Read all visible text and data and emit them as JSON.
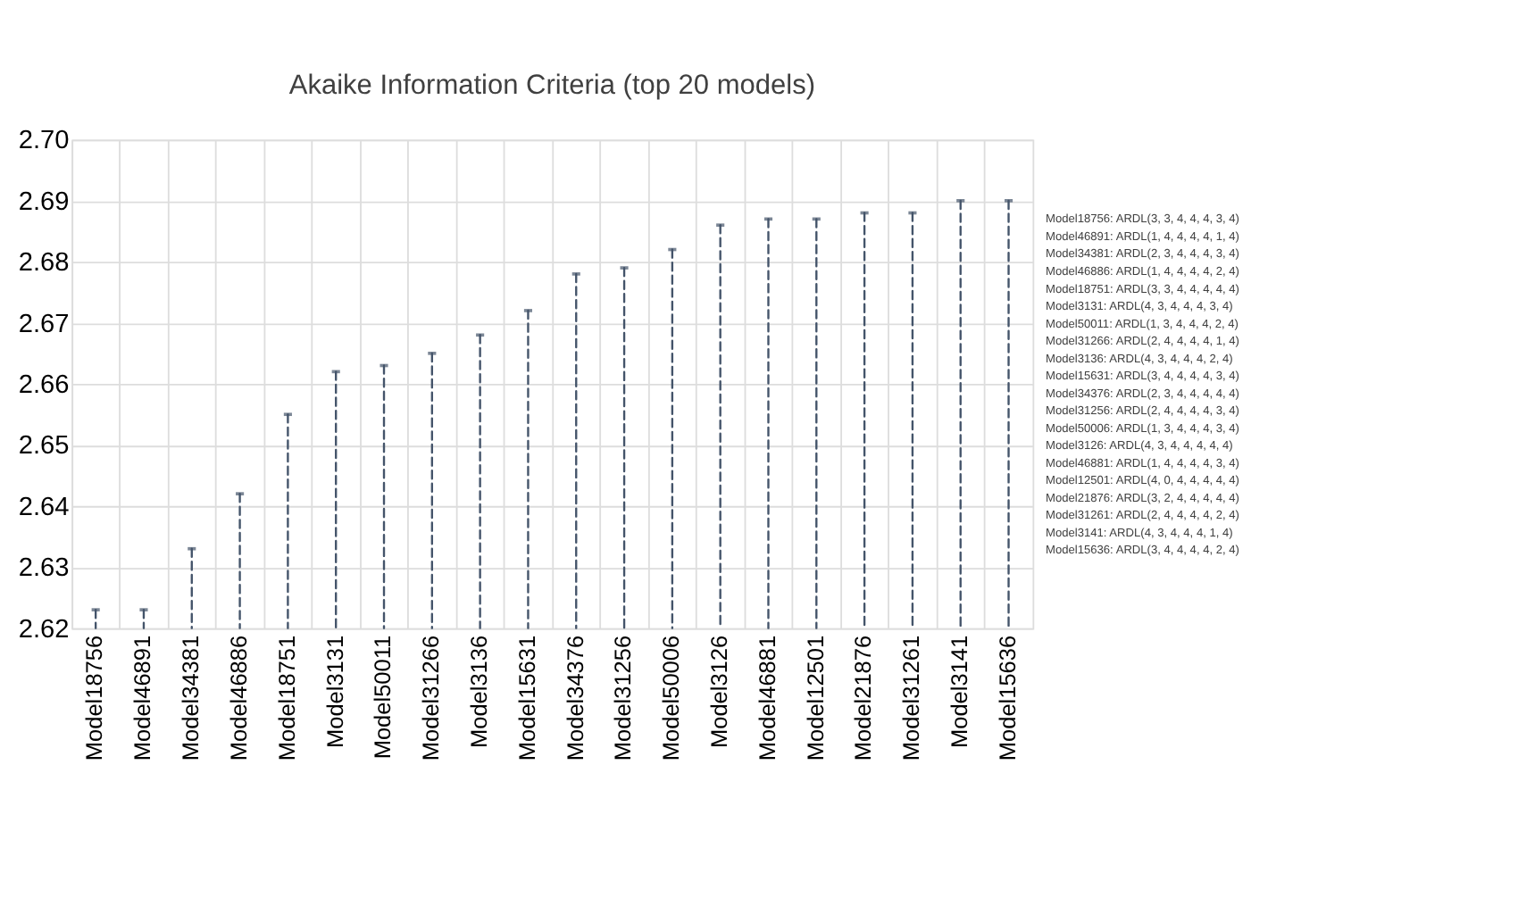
{
  "chart_data": {
    "type": "lollipop",
    "title": "Akaike Information Criteria (top 20 models)",
    "categories": [
      "Model18756",
      "Model46891",
      "Model34381",
      "Model46886",
      "Model18751",
      "Model3131",
      "Model50011",
      "Model31266",
      "Model3136",
      "Model15631",
      "Model34376",
      "Model31256",
      "Model50006",
      "Model3126",
      "Model46881",
      "Model12501",
      "Model21876",
      "Model31261",
      "Model3141",
      "Model15636"
    ],
    "values": [
      2.623,
      2.623,
      2.633,
      2.642,
      2.655,
      2.662,
      2.663,
      2.665,
      2.668,
      2.672,
      2.678,
      2.679,
      2.682,
      2.686,
      2.687,
      2.687,
      2.688,
      2.688,
      2.69,
      2.69
    ],
    "color": "#44546a",
    "line_style": "dashed",
    "ylim": [
      2.62,
      2.7
    ],
    "yticks": [
      {
        "value": 2.62,
        "label": "2.62"
      },
      {
        "value": 2.63,
        "label": "2.63"
      },
      {
        "value": 2.64,
        "label": "2.64"
      },
      {
        "value": 2.65,
        "label": "2.65"
      },
      {
        "value": 2.66,
        "label": "2.66"
      },
      {
        "value": 2.67,
        "label": "2.67"
      },
      {
        "value": 2.68,
        "label": "2.68"
      },
      {
        "value": 2.69,
        "label": "2.69"
      },
      {
        "value": 2.7,
        "label": "2.70"
      }
    ],
    "grid": true,
    "annotations": [
      "Model18756: ARDL(3, 3, 4, 4, 4, 3, 4)",
      "Model46891: ARDL(1, 4, 4, 4, 4, 1, 4)",
      "Model34381: ARDL(2, 3, 4, 4, 4, 3, 4)",
      "Model46886: ARDL(1, 4, 4, 4, 4, 2, 4)",
      "Model18751: ARDL(3, 3, 4, 4, 4, 4, 4)",
      "Model3131: ARDL(4, 3, 4, 4, 4, 3, 4)",
      "Model50011: ARDL(1, 3, 4, 4, 4, 2, 4)",
      "Model31266: ARDL(2, 4, 4, 4, 4, 1, 4)",
      "Model3136: ARDL(4, 3, 4, 4, 4, 2, 4)",
      "Model15631: ARDL(3, 4, 4, 4, 4, 3, 4)",
      "Model34376: ARDL(2, 3, 4, 4, 4, 4, 4)",
      "Model31256: ARDL(2, 4, 4, 4, 4, 3, 4)",
      "Model50006: ARDL(1, 3, 4, 4, 4, 3, 4)",
      "Model3126: ARDL(4, 3, 4, 4, 4, 4, 4)",
      "Model46881: ARDL(1, 4, 4, 4, 4, 3, 4)",
      "Model12501: ARDL(4, 0, 4, 4, 4, 4, 4)",
      "Model21876: ARDL(3, 2, 4, 4, 4, 4, 4)",
      "Model31261: ARDL(2, 4, 4, 4, 4, 2, 4)",
      "Model3141: ARDL(4, 3, 4, 4, 4, 1, 4)",
      "Model15636: ARDL(3, 4, 4, 4, 4, 2, 4)"
    ]
  }
}
